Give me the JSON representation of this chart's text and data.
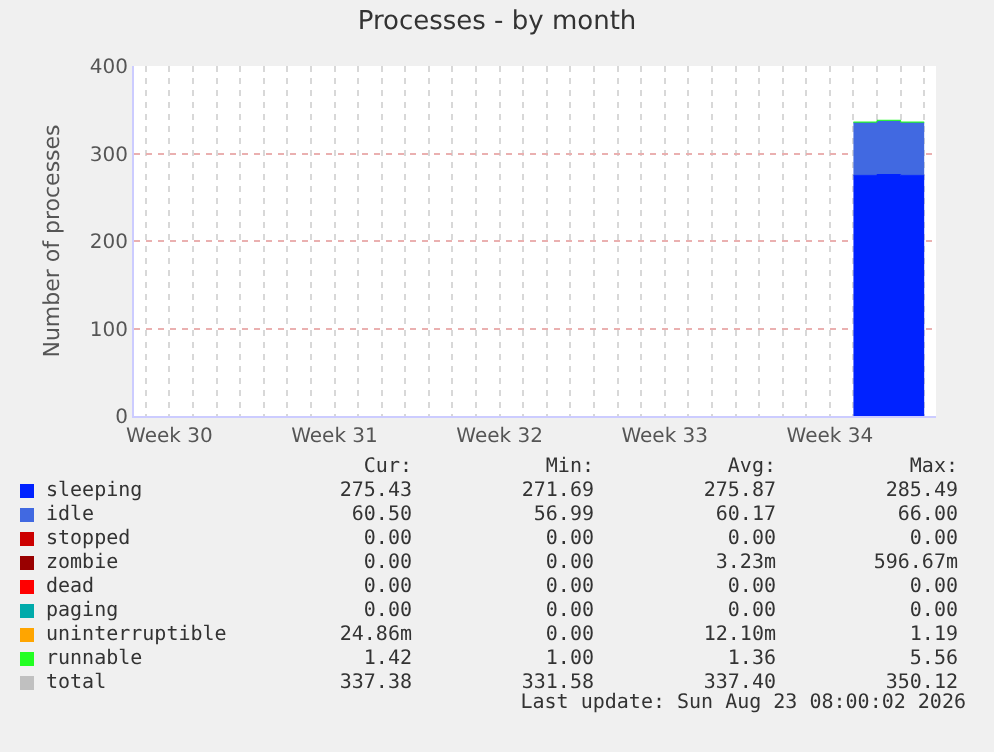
{
  "chart_data": {
    "type": "area",
    "title": "Processes - by month",
    "ylabel": "Number of processes",
    "stacked": true,
    "categories": [
      null,
      "Week 30",
      null,
      null,
      null,
      null,
      null,
      null,
      "Week 31",
      null,
      null,
      null,
      null,
      null,
      null,
      "Week 32",
      null,
      null,
      null,
      null,
      null,
      null,
      "Week 33",
      null,
      null,
      null,
      null,
      null,
      null,
      "Week 34",
      null,
      null,
      null,
      null
    ],
    "ylim": [
      0,
      400
    ],
    "yticks": [
      0,
      100,
      200,
      300,
      400
    ],
    "grid": true,
    "legend": "bottom",
    "series": [
      {
        "name": "sleeping",
        "color": "#0022ff",
        "values": [
          null,
          null,
          null,
          null,
          null,
          null,
          null,
          null,
          null,
          null,
          null,
          null,
          null,
          null,
          null,
          null,
          null,
          null,
          null,
          null,
          null,
          null,
          null,
          null,
          null,
          null,
          null,
          null,
          null,
          null,
          275,
          276,
          275,
          275
        ]
      },
      {
        "name": "idle",
        "color": "#4169e1",
        "values": [
          null,
          null,
          null,
          null,
          null,
          null,
          null,
          null,
          null,
          null,
          null,
          null,
          null,
          null,
          null,
          null,
          null,
          null,
          null,
          null,
          null,
          null,
          null,
          null,
          null,
          null,
          null,
          null,
          null,
          null,
          60,
          61,
          60,
          60
        ]
      },
      {
        "name": "stopped",
        "color": "#cc0000",
        "values": [
          null,
          null,
          null,
          null,
          null,
          null,
          null,
          null,
          null,
          null,
          null,
          null,
          null,
          null,
          null,
          null,
          null,
          null,
          null,
          null,
          null,
          null,
          null,
          null,
          null,
          null,
          null,
          null,
          null,
          null,
          null,
          null,
          null,
          null
        ]
      },
      {
        "name": "zombie",
        "color": "#990000",
        "values": [
          null,
          null,
          null,
          null,
          null,
          null,
          null,
          null,
          null,
          null,
          null,
          null,
          null,
          null,
          null,
          null,
          null,
          null,
          null,
          null,
          null,
          null,
          null,
          null,
          null,
          null,
          null,
          null,
          null,
          null,
          null,
          null,
          null,
          null
        ]
      },
      {
        "name": "dead",
        "color": "#ff0000",
        "values": [
          null,
          null,
          null,
          null,
          null,
          null,
          null,
          null,
          null,
          null,
          null,
          null,
          null,
          null,
          null,
          null,
          null,
          null,
          null,
          null,
          null,
          null,
          null,
          null,
          null,
          null,
          null,
          null,
          null,
          null,
          null,
          null,
          null,
          null
        ]
      },
      {
        "name": "paging",
        "color": "#00aaaa",
        "values": [
          null,
          null,
          null,
          null,
          null,
          null,
          null,
          null,
          null,
          null,
          null,
          null,
          null,
          null,
          null,
          null,
          null,
          null,
          null,
          null,
          null,
          null,
          null,
          null,
          null,
          null,
          null,
          null,
          null,
          null,
          null,
          null,
          null,
          null
        ]
      },
      {
        "name": "uninterruptible",
        "color": "#ffa500",
        "values": [
          null,
          null,
          null,
          null,
          null,
          null,
          null,
          null,
          null,
          null,
          null,
          null,
          null,
          null,
          null,
          null,
          null,
          null,
          null,
          null,
          null,
          null,
          null,
          null,
          null,
          null,
          null,
          null,
          null,
          null,
          null,
          null,
          null,
          null
        ]
      },
      {
        "name": "runnable",
        "color": "#22ff22",
        "values": [
          null,
          null,
          null,
          null,
          null,
          null,
          null,
          null,
          null,
          null,
          null,
          null,
          null,
          null,
          null,
          null,
          null,
          null,
          null,
          null,
          null,
          null,
          null,
          null,
          null,
          null,
          null,
          null,
          null,
          null,
          1,
          1,
          1,
          1
        ]
      },
      {
        "name": "total",
        "color": "#c0c0c0",
        "values": [
          null,
          null,
          null,
          null,
          null,
          null,
          null,
          null,
          null,
          null,
          null,
          null,
          null,
          null,
          null,
          null,
          null,
          null,
          null,
          null,
          null,
          null,
          null,
          null,
          null,
          null,
          null,
          null,
          null,
          null,
          null,
          null,
          null,
          null
        ]
      }
    ],
    "annotations": [
      "Cur:",
      "Min:",
      "Avg:",
      "Max:",
      "275.43",
      "271.69",
      "275.87",
      "285.49",
      "60.50",
      "56.99",
      "60.17",
      "66.00",
      "0.00",
      "0.00",
      "0.00",
      "0.00",
      "0.00",
      "0.00",
      "3.23m",
      "596.67m",
      "0.00",
      "0.00",
      "0.00",
      "0.00",
      "0.00",
      "0.00",
      "0.00",
      "0.00",
      "24.86m",
      "0.00",
      "12.10m",
      "1.19",
      "1.42",
      "1.00",
      "1.36",
      "5.56",
      "337.38",
      "331.58",
      "337.40",
      "350.12",
      "Last update: Sun Aug 23 08:00:02 2026"
    ]
  }
}
